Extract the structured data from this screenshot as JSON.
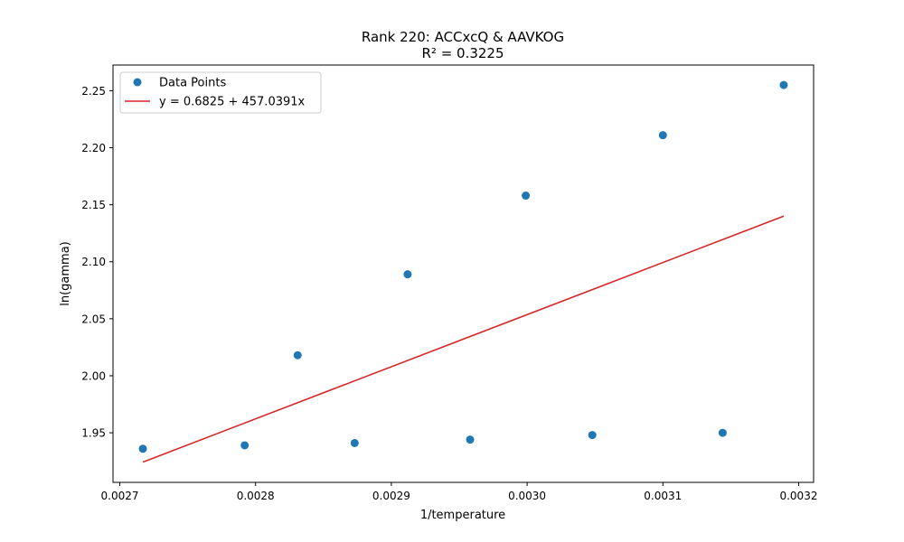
{
  "chart_data": {
    "type": "scatter",
    "title": "Rank 220: ACCxcQ & AAVKOG",
    "subtitle": "R² = 0.3225",
    "xlabel": "1/temperature",
    "ylabel": "ln(gamma)",
    "xlim": [
      0.002695,
      0.003211
    ],
    "ylim": [
      1.9065,
      2.2725
    ],
    "xticks": [
      0.0027,
      0.0028,
      0.0029,
      0.003,
      0.0031,
      0.0032
    ],
    "xtick_labels": [
      "0.0027",
      "0.0028",
      "0.0029",
      "0.0030",
      "0.0031",
      "0.0032"
    ],
    "yticks": [
      1.95,
      2.0,
      2.05,
      2.1,
      2.15,
      2.2,
      2.25
    ],
    "ytick_labels": [
      "1.95",
      "2.00",
      "2.05",
      "2.10",
      "2.15",
      "2.20",
      "2.25"
    ],
    "grid": false,
    "legend_position": "top-left",
    "series": [
      {
        "name": "Data Points",
        "kind": "scatter",
        "color": "#1f77b4",
        "x": [
          0.002717,
          0.002792,
          0.002831,
          0.002873,
          0.002912,
          0.002958,
          0.002999,
          0.003048,
          0.0031,
          0.003144,
          0.003189
        ],
        "y": [
          1.936,
          1.939,
          2.018,
          1.941,
          2.089,
          1.944,
          2.158,
          1.948,
          2.211,
          1.95,
          2.255
        ]
      },
      {
        "name": "y = 0.6825 + 457.0391x",
        "kind": "line",
        "color": "#d62728",
        "intercept": 0.6825,
        "slope": 457.0391,
        "x_range": [
          0.002717,
          0.003189
        ]
      }
    ]
  }
}
